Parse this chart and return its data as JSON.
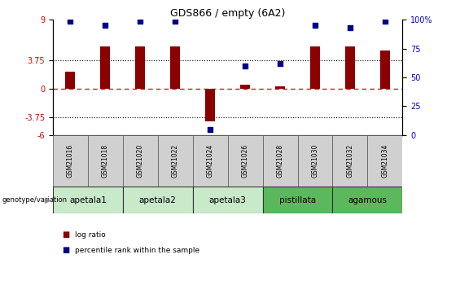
{
  "title": "GDS866 / empty (6A2)",
  "samples": [
    "GSM21016",
    "GSM21018",
    "GSM21020",
    "GSM21022",
    "GSM21024",
    "GSM21026",
    "GSM21028",
    "GSM21030",
    "GSM21032",
    "GSM21034"
  ],
  "log_ratios": [
    2.2,
    5.5,
    5.5,
    5.5,
    -4.2,
    0.5,
    0.3,
    5.5,
    5.5,
    5.0
  ],
  "percentile_ranks": [
    99,
    95,
    99,
    99,
    5,
    60,
    62,
    95,
    93,
    99
  ],
  "ylim_left": [
    -6,
    9
  ],
  "ylim_right": [
    0,
    100
  ],
  "yticks_left": [
    -6,
    -3.75,
    0,
    3.75,
    9
  ],
  "yticks_right": [
    0,
    25,
    50,
    75,
    100
  ],
  "hline_y": [
    3.75,
    -3.75
  ],
  "zero_line_y": 0,
  "groups": [
    {
      "name": "apetala1",
      "samples": [
        0,
        1
      ],
      "color": "#c8eaca"
    },
    {
      "name": "apetala2",
      "samples": [
        2,
        3
      ],
      "color": "#c8eaca"
    },
    {
      "name": "apetala3",
      "samples": [
        4,
        5
      ],
      "color": "#c8eaca"
    },
    {
      "name": "pistillata",
      "samples": [
        6,
        7
      ],
      "color": "#5cb85c"
    },
    {
      "name": "agamous",
      "samples": [
        8,
        9
      ],
      "color": "#5cb85c"
    }
  ],
  "bar_color": "#8b0000",
  "dot_color": "#00008b",
  "legend_bar_color": "#8b0000",
  "legend_dot_color": "#00008b",
  "zero_line_color": "#cc0000",
  "hline_color": "#000000",
  "tick_label_color_left": "#cc0000",
  "tick_label_color_right": "#0000cc",
  "sample_box_color": "#d0d0d0",
  "genotype_label": "genotype/variation"
}
